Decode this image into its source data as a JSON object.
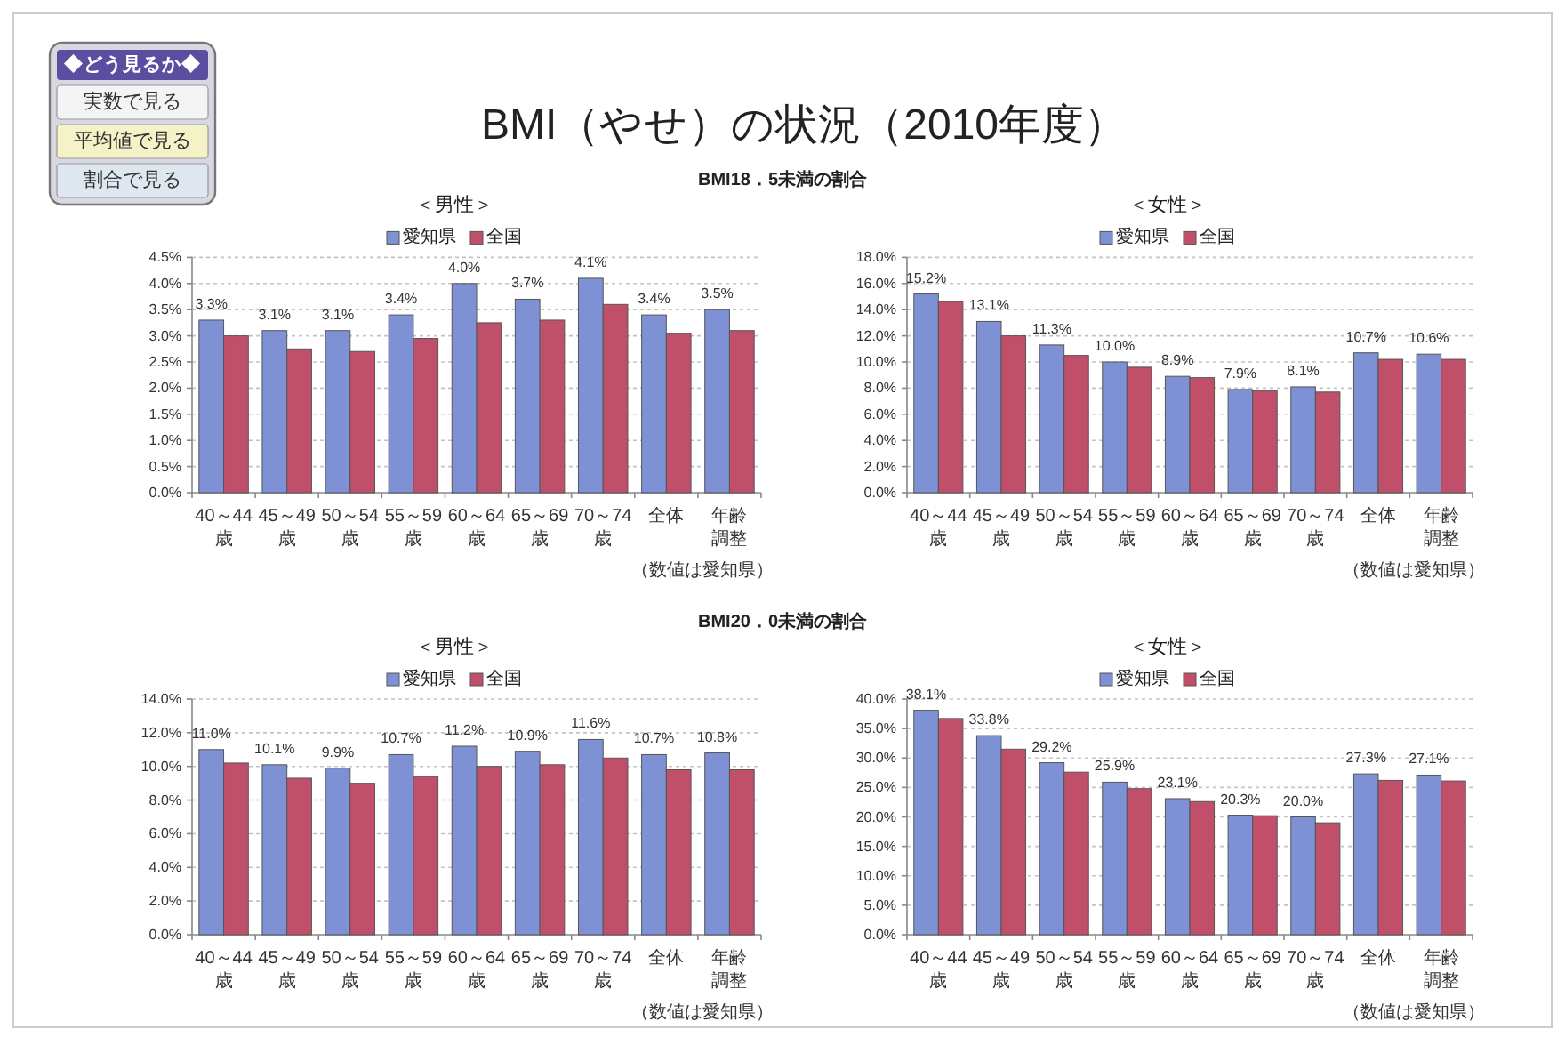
{
  "chart_data": [
    {
      "type": "other",
      "title": "BMI（やせ）の状況（2010年度）",
      "annotations": [
        "◆どう見るか◆",
        "実数で見る",
        "平均値で見る",
        "割合で見る"
      ]
    },
    {
      "type": "bar",
      "title": "＜男性＞",
      "categories": [
        "40～44歳",
        "45～49歳",
        "50～54歳",
        "55～59歳",
        "60～64歳",
        "65～69歳",
        "70～74歳",
        "全体",
        "年齢調整"
      ],
      "series": [
        {
          "name": "愛知県",
          "color": "#7f91d5",
          "values": [
            3.3,
            3.1,
            3.1,
            3.4,
            4.0,
            3.7,
            4.1,
            3.4,
            3.5
          ],
          "value_labels": [
            "3.3%",
            "3.1%",
            "3.1%",
            "3.4%",
            "4.0%",
            "3.7%",
            "4.1%",
            "3.4%",
            "3.5%"
          ]
        },
        {
          "name": "全国",
          "color": "#c0506a",
          "values": [
            3.0,
            2.75,
            2.7,
            2.95,
            3.25,
            3.3,
            3.6,
            3.05,
            3.1
          ]
        }
      ],
      "ylim": [
        0,
        4.5
      ],
      "yticks": [
        {
          "value": 0,
          "label": "0.0%"
        },
        {
          "value": 0.5,
          "label": "0.5%"
        },
        {
          "value": 1,
          "label": "1.0%"
        },
        {
          "value": 1.5,
          "label": "1.5%"
        },
        {
          "value": 2,
          "label": "2.0%"
        },
        {
          "value": 2.5,
          "label": "2.5%"
        },
        {
          "value": 3,
          "label": "3.0%"
        },
        {
          "value": 3.5,
          "label": "3.5%"
        },
        {
          "value": 4,
          "label": "4.0%"
        },
        {
          "value": 4.5,
          "label": "4.5%"
        }
      ],
      "grid": "y",
      "legend": "top",
      "annotations": [
        "BMI18．5未満の割合",
        "（数値は愛知県）"
      ]
    },
    {
      "type": "bar",
      "title": "＜女性＞",
      "categories": [
        "40～44歳",
        "45～49歳",
        "50～54歳",
        "55～59歳",
        "60～64歳",
        "65～69歳",
        "70～74歳",
        "全体",
        "年齢調整"
      ],
      "series": [
        {
          "name": "愛知県",
          "color": "#7f91d5",
          "values": [
            15.2,
            13.1,
            11.3,
            10.0,
            8.9,
            7.9,
            8.1,
            10.7,
            10.6
          ],
          "value_labels": [
            "15.2%",
            "13.1%",
            "11.3%",
            "10.0%",
            "8.9%",
            "7.9%",
            "8.1%",
            "10.7%",
            "10.6%"
          ]
        },
        {
          "name": "全国",
          "color": "#c0506a",
          "values": [
            14.6,
            12.0,
            10.5,
            9.6,
            8.8,
            7.8,
            7.7,
            10.2,
            10.2
          ]
        }
      ],
      "ylim": [
        0,
        18
      ],
      "yticks": [
        {
          "value": 0,
          "label": "0.0%"
        },
        {
          "value": 2,
          "label": "2.0%"
        },
        {
          "value": 4,
          "label": "4.0%"
        },
        {
          "value": 6,
          "label": "6.0%"
        },
        {
          "value": 8,
          "label": "8.0%"
        },
        {
          "value": 10,
          "label": "10.0%"
        },
        {
          "value": 12,
          "label": "12.0%"
        },
        {
          "value": 14,
          "label": "14.0%"
        },
        {
          "value": 16,
          "label": "16.0%"
        },
        {
          "value": 18,
          "label": "18.0%"
        }
      ],
      "grid": "y",
      "legend": "top",
      "annotations": [
        "（数値は愛知県）"
      ]
    },
    {
      "type": "bar",
      "title": "＜男性＞",
      "categories": [
        "40～44歳",
        "45～49歳",
        "50～54歳",
        "55～59歳",
        "60～64歳",
        "65～69歳",
        "70～74歳",
        "全体",
        "年齢調整"
      ],
      "series": [
        {
          "name": "愛知県",
          "color": "#7f91d5",
          "values": [
            11.0,
            10.1,
            9.9,
            10.7,
            11.2,
            10.9,
            11.6,
            10.7,
            10.8
          ],
          "value_labels": [
            "11.0%",
            "10.1%",
            "9.9%",
            "10.7%",
            "11.2%",
            "10.9%",
            "11.6%",
            "10.7%",
            "10.8%"
          ]
        },
        {
          "name": "全国",
          "color": "#c0506a",
          "values": [
            10.2,
            9.3,
            9.0,
            9.4,
            10.0,
            10.1,
            10.5,
            9.8,
            9.8
          ]
        }
      ],
      "ylim": [
        0,
        14
      ],
      "yticks": [
        {
          "value": 0,
          "label": "0.0%"
        },
        {
          "value": 2,
          "label": "2.0%"
        },
        {
          "value": 4,
          "label": "4.0%"
        },
        {
          "value": 6,
          "label": "6.0%"
        },
        {
          "value": 8,
          "label": "8.0%"
        },
        {
          "value": 10,
          "label": "10.0%"
        },
        {
          "value": 12,
          "label": "12.0%"
        },
        {
          "value": 14,
          "label": "14.0%"
        }
      ],
      "grid": "y",
      "legend": "top",
      "annotations": [
        "BMI20．0未満の割合",
        "（数値は愛知県）"
      ]
    },
    {
      "type": "bar",
      "title": "＜女性＞",
      "categories": [
        "40～44歳",
        "45～49歳",
        "50～54歳",
        "55～59歳",
        "60～64歳",
        "65～69歳",
        "70～74歳",
        "全体",
        "年齢調整"
      ],
      "series": [
        {
          "name": "愛知県",
          "color": "#7f91d5",
          "values": [
            38.1,
            33.8,
            29.2,
            25.9,
            23.1,
            20.3,
            20.0,
            27.3,
            27.1
          ],
          "value_labels": [
            "38.1%",
            "33.8%",
            "29.2%",
            "25.9%",
            "23.1%",
            "20.3%",
            "20.0%",
            "27.3%",
            "27.1%"
          ]
        },
        {
          "name": "全国",
          "color": "#c0506a",
          "values": [
            36.7,
            31.5,
            27.6,
            24.8,
            22.6,
            20.2,
            19.0,
            26.2,
            26.1
          ]
        }
      ],
      "ylim": [
        0,
        40
      ],
      "yticks": [
        {
          "value": 0,
          "label": "0.0%"
        },
        {
          "value": 5,
          "label": "5.0%"
        },
        {
          "value": 10,
          "label": "10.0%"
        },
        {
          "value": 15,
          "label": "15.0%"
        },
        {
          "value": 20,
          "label": "20.0%"
        },
        {
          "value": 25,
          "label": "25.0%"
        },
        {
          "value": 30,
          "label": "30.0%"
        },
        {
          "value": 35,
          "label": "35.0%"
        },
        {
          "value": 40,
          "label": "40.0%"
        }
      ],
      "grid": "y",
      "legend": "top",
      "annotations": [
        "（数値は愛知県）"
      ]
    }
  ]
}
